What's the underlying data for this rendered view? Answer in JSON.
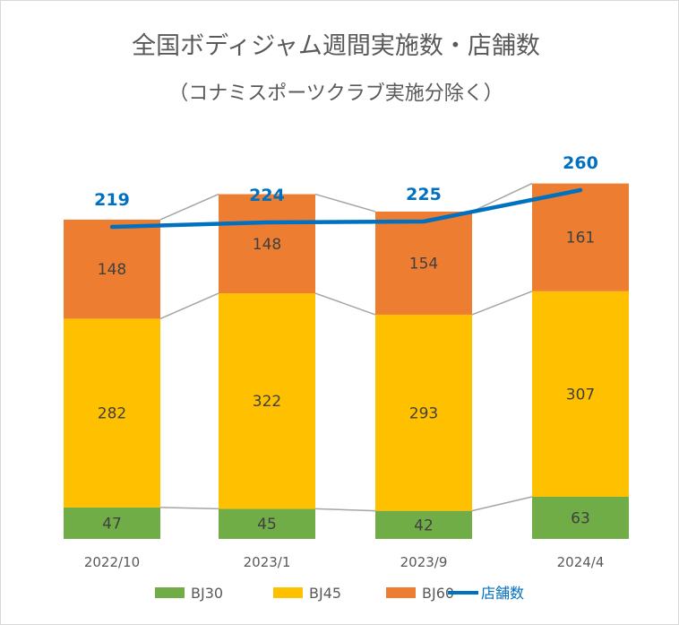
{
  "chart_data": {
    "type": "bar",
    "stacked": true,
    "title": "全国ボディジャム週間実施数・店舗数",
    "subtitle": "（コナミスポーツクラブ実施分除く）",
    "categories": [
      "2022/10",
      "2023/1",
      "2023/9",
      "2024/4"
    ],
    "series": [
      {
        "name": "BJ30",
        "values": [
          47,
          45,
          42,
          63
        ],
        "color": "#70ad47"
      },
      {
        "name": "BJ45",
        "values": [
          282,
          322,
          293,
          307
        ],
        "color": "#ffc000"
      },
      {
        "name": "BJ60",
        "values": [
          148,
          148,
          154,
          161
        ],
        "color": "#ed7d31"
      }
    ],
    "line": {
      "name": "店舗数",
      "values": [
        219,
        224,
        225,
        260
      ],
      "color": "#0070c0"
    },
    "series_lines": true,
    "grid": false,
    "legend": "bottom"
  }
}
